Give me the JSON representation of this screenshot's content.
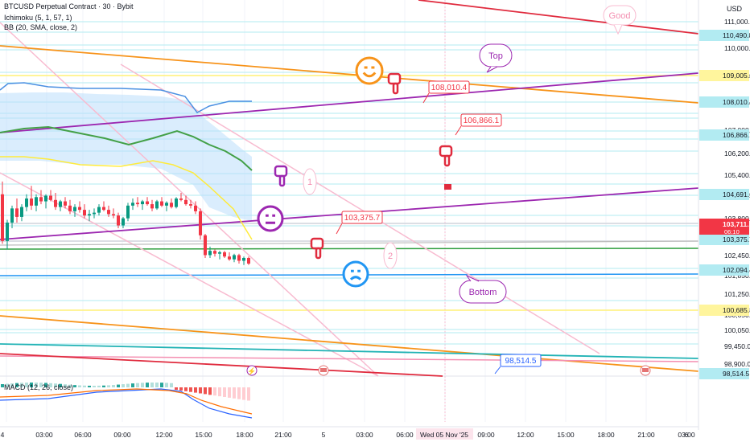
{
  "header": {
    "symbol": "BTCUSD Perpetual Contract · 30 · Bybit",
    "ichimoku": "Ichimoku (5, 1, 57, 1)",
    "bb": "BB (20, SMA, close, 2)",
    "macd": "MACD (12, 26, close)",
    "currency": "USD"
  },
  "chart_data": {
    "type": "candlestick",
    "symbol": "BTCUSD Perpetual Contract",
    "interval": "30",
    "exchange": "Bybit",
    "current_price": "103,711.1",
    "countdown": "06:10",
    "ylim": [
      98300,
      111400
    ],
    "price_axis_ticks": [
      "111,000.0",
      "110,000.0",
      "109,000.0",
      "108,000.0",
      "107,000.0",
      "106,200.0",
      "105,400.0",
      "104,600.0",
      "103,800.0",
      "102,450.0",
      "101,850.0",
      "101,250.0",
      "100,650.0",
      "100,050.0",
      "99,450.0",
      "98,900.0"
    ],
    "price_badges": [
      {
        "label": "110,490.8",
        "value": 110490.8,
        "style": "blue"
      },
      {
        "label": "109,005.6",
        "value": 109005.6,
        "style": "yellow"
      },
      {
        "label": "108,010.4",
        "value": 108010.4,
        "style": "blue"
      },
      {
        "label": "106,866.1",
        "value": 106866.1,
        "style": "blue"
      },
      {
        "label": "104,691.6",
        "value": 104691.6,
        "style": "blue"
      },
      {
        "label": "103,711.1",
        "value": 103711.1,
        "style": "red"
      },
      {
        "label": "103,375.7",
        "value": 103375.7,
        "style": "blue"
      },
      {
        "label": "102,094.4",
        "value": 102094.4,
        "style": "blue"
      },
      {
        "label": "100,685.8",
        "value": 100685.8,
        "style": "yellow"
      },
      {
        "label": "98,514.5",
        "value": 98514.5,
        "style": "blue"
      }
    ],
    "time_axis_ticks": [
      "4",
      "03:00",
      "06:00",
      "09:00",
      "12:00",
      "15:00",
      "18:00",
      "21:00",
      "5",
      "03:00",
      "06:00",
      "Wed 05 Nov '25",
      "09:00",
      "12:00",
      "15:00",
      "18:00",
      "21:00",
      "6",
      "03:00"
    ],
    "annotations": [
      {
        "type": "callout",
        "text": "Good"
      },
      {
        "type": "callout",
        "text": "Top"
      },
      {
        "type": "callout",
        "text": "Bottom"
      },
      {
        "type": "callout",
        "text": "1"
      },
      {
        "type": "callout",
        "text": "2"
      },
      {
        "type": "price_label",
        "text": "108,010.4",
        "value": 108010.4
      },
      {
        "type": "price_label",
        "text": "106,866.1",
        "value": 106866.1
      },
      {
        "type": "price_label",
        "text": "103,375.7",
        "value": 103375.7
      },
      {
        "type": "price_label",
        "text": "98,514.5",
        "value": 98514.5
      }
    ],
    "candles": [
      [
        104900,
        105350,
        103150,
        103250
      ],
      [
        103250,
        104000,
        102950,
        103900
      ],
      [
        103900,
        104500,
        103700,
        104400
      ],
      [
        104400,
        104750,
        103900,
        104100
      ],
      [
        104100,
        104550,
        103950,
        104450
      ],
      [
        104450,
        104900,
        104300,
        104750
      ],
      [
        104750,
        105200,
        104350,
        104500
      ],
      [
        104500,
        104900,
        104300,
        104800
      ],
      [
        104800,
        105050,
        104550,
        104650
      ],
      [
        104650,
        104900,
        104400,
        104850
      ],
      [
        104850,
        105050,
        104650,
        104700
      ],
      [
        104700,
        104950,
        104350,
        104450
      ],
      [
        104450,
        104700,
        104300,
        104650
      ],
      [
        104650,
        104800,
        104400,
        104500
      ],
      [
        104500,
        104700,
        104200,
        104300
      ],
      [
        104300,
        104550,
        104100,
        104450
      ],
      [
        104450,
        104650,
        104250,
        104350
      ],
      [
        104350,
        104550,
        104050,
        104150
      ],
      [
        104150,
        104350,
        103950,
        104200
      ],
      [
        104200,
        104400,
        104050,
        104250
      ],
      [
        104250,
        104550,
        104150,
        104450
      ],
      [
        104450,
        104650,
        104300,
        104350
      ],
      [
        104350,
        104500,
        104100,
        104200
      ],
      [
        104200,
        104400,
        104050,
        104150
      ],
      [
        104150,
        104250,
        103700,
        103800
      ],
      [
        103800,
        104100,
        103700,
        104050
      ],
      [
        104050,
        104600,
        103950,
        104500
      ],
      [
        104500,
        104750,
        104350,
        104600
      ],
      [
        104600,
        104800,
        104450,
        104550
      ],
      [
        104550,
        104700,
        104350,
        104650
      ],
      [
        104650,
        104800,
        104500,
        104550
      ],
      [
        104550,
        104700,
        104300,
        104400
      ],
      [
        104400,
        104700,
        104350,
        104650
      ],
      [
        104650,
        104800,
        104450,
        104500
      ],
      [
        104500,
        104650,
        104300,
        104600
      ],
      [
        104600,
        104750,
        104400,
        104450
      ],
      [
        104450,
        104800,
        104400,
        104750
      ],
      [
        104750,
        104950,
        104650,
        104700
      ],
      [
        104700,
        104850,
        104500,
        104550
      ],
      [
        104550,
        104700,
        104400,
        104500
      ],
      [
        104500,
        104650,
        104200,
        104300
      ],
      [
        104300,
        104400,
        103300,
        103450
      ],
      [
        103450,
        103500,
        102650,
        102750
      ],
      [
        102750,
        103050,
        102650,
        102900
      ],
      [
        102900,
        102950,
        102700,
        102800
      ],
      [
        102800,
        102900,
        102600,
        102850
      ],
      [
        102850,
        102900,
        102650,
        102700
      ],
      [
        102700,
        102850,
        102550,
        102600
      ],
      [
        102600,
        102800,
        102500,
        102750
      ],
      [
        102750,
        102800,
        102450,
        102550
      ],
      [
        102550,
        102700,
        102400,
        102650
      ],
      [
        102650,
        102700,
        102400,
        102450
      ]
    ]
  },
  "toolbar_icons": [
    {
      "name": "lightning-icon",
      "glyph": "⚡"
    },
    {
      "name": "flag-icon-1",
      "glyph": "■"
    },
    {
      "name": "flag-icon-2",
      "glyph": "■"
    }
  ],
  "colors": {
    "bull": "#089981",
    "bear": "#f23645",
    "purple": "#9c27b0",
    "orange": "#f7931a",
    "crimson": "#e02b3e",
    "green": "#2e9e3e",
    "blue": "#2196f3",
    "yellow": "#ffeb3b",
    "pink": "#f8bbd0",
    "teal": "#22b3b5",
    "cyan_line": "#b2ebf2"
  }
}
